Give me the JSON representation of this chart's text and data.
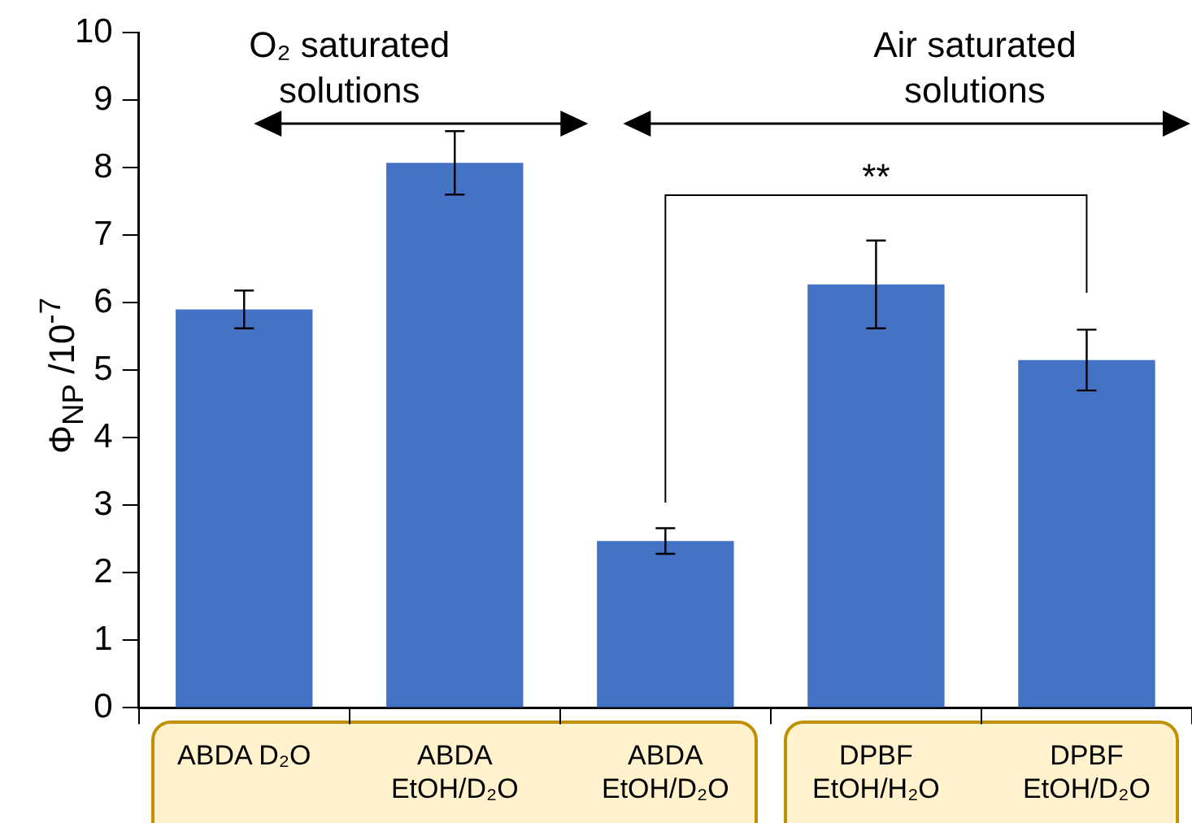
{
  "chart_data": {
    "type": "bar",
    "ylabel": "Φ$_{NP}$ /10$^{-7}$",
    "categories": [
      "ABDA D₂O",
      "ABDA EtOH/D₂O",
      "ABDA EtOH/D₂O",
      "DPBF EtOH/H₂O",
      "DPBF EtOH/D₂O"
    ],
    "values": [
      5.9,
      8.07,
      2.47,
      6.27,
      5.15
    ],
    "errors": [
      0.28,
      0.47,
      0.19,
      0.65,
      0.45
    ],
    "color": "#4472c4",
    "ylim": [
      0,
      10
    ],
    "yticks": [
      0,
      1,
      2,
      3,
      4,
      5,
      6,
      7,
      8,
      9,
      10
    ],
    "grid": false,
    "legend": false,
    "annotations": [
      "O₂ saturated solutions",
      "Air saturated solutions",
      "**"
    ]
  }
}
